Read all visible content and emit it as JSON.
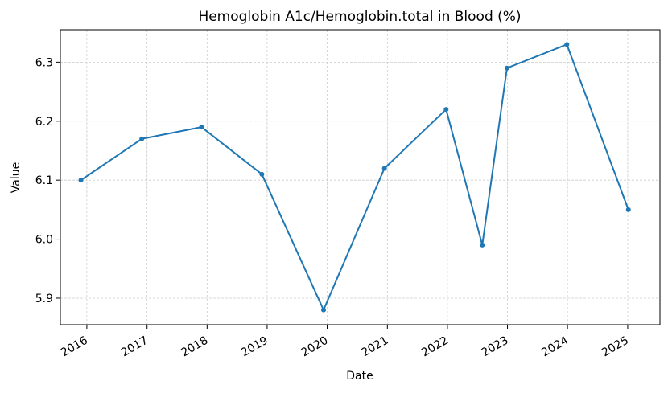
{
  "chart_data": {
    "type": "line",
    "title": "Hemoglobin A1c/Hemoglobin.total in Blood (%)",
    "xlabel": "Date",
    "ylabel": "Value",
    "x_tick_labels": [
      "2016",
      "2017",
      "2018",
      "2019",
      "2020",
      "2021",
      "2022",
      "2023",
      "2024",
      "2025"
    ],
    "y_tick_labels": [
      "5.9",
      "6.0",
      "6.1",
      "6.2",
      "6.3"
    ],
    "ylim": [
      5.855,
      6.355
    ],
    "xlim": [
      "2015-07-24",
      "2025-07-16"
    ],
    "grid": true,
    "series": [
      {
        "color": "#1f77b4",
        "points": [
          {
            "x": "2015-11-26",
            "y": 6.1
          },
          {
            "x": "2016-11-30",
            "y": 6.17
          },
          {
            "x": "2017-11-28",
            "y": 6.19
          },
          {
            "x": "2018-11-30",
            "y": 6.11
          },
          {
            "x": "2019-12-10",
            "y": 5.88
          },
          {
            "x": "2020-12-14",
            "y": 6.12
          },
          {
            "x": "2021-12-24",
            "y": 6.22
          },
          {
            "x": "2022-08-01",
            "y": 5.99
          },
          {
            "x": "2022-12-29",
            "y": 6.29
          },
          {
            "x": "2023-12-28",
            "y": 6.33
          },
          {
            "x": "2025-01-05",
            "y": 6.05
          }
        ]
      }
    ]
  }
}
